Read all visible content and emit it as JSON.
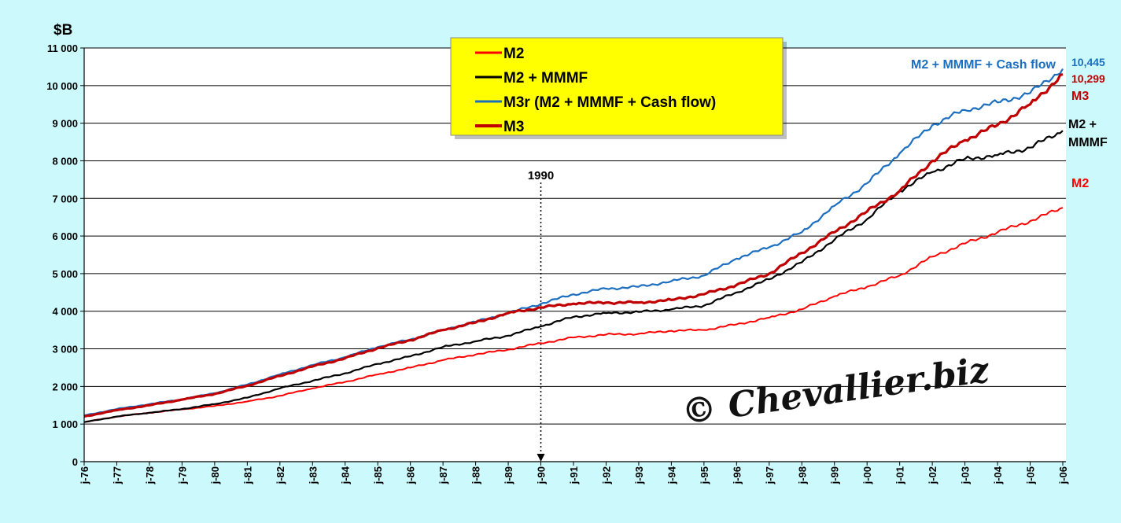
{
  "chart_data": {
    "type": "line",
    "ylabel": "$B",
    "ylim": [
      0,
      11000
    ],
    "yticks": [
      "0",
      "1 000",
      "2 000",
      "3 000",
      "4 000",
      "5 000",
      "6 000",
      "7 000",
      "8 000",
      "9 000",
      "10 000",
      "11 000"
    ],
    "x_start_year": 1976,
    "x_end_year": 2006,
    "xticks": [
      "j-76",
      "j-77",
      "j-78",
      "j-79",
      "j-80",
      "j-81",
      "j-82",
      "j-83",
      "j-84",
      "j-85",
      "j-86",
      "j-87",
      "j-88",
      "j-89",
      "j-90",
      "j-91",
      "j-92",
      "j-93",
      "j-94",
      "j-95",
      "j-96",
      "j-97",
      "j-98",
      "j-99",
      "j-00",
      "j-01",
      "j-02",
      "j-03",
      "j-04",
      "j-05",
      "j-06"
    ],
    "grid": true,
    "legend_position": "top-center",
    "annotation": {
      "label": "1990",
      "x": 1990
    },
    "watermark": "© Chevallier.biz",
    "series": [
      {
        "name": "M2",
        "color": "#ff0000",
        "width": 2,
        "end_label": "M2",
        "x": [
          1976,
          1977,
          1978,
          1979,
          1980,
          1981,
          1982,
          1983,
          1984,
          1985,
          1986,
          1987,
          1988,
          1989,
          1990,
          1991,
          1992,
          1993,
          1994,
          1995,
          1996,
          1997,
          1998,
          1999,
          2000,
          2001,
          2002,
          2003,
          2004,
          2005,
          2006
        ],
        "values": [
          1050,
          1200,
          1300,
          1390,
          1480,
          1600,
          1750,
          1950,
          2120,
          2320,
          2500,
          2700,
          2850,
          2980,
          3150,
          3300,
          3380,
          3400,
          3480,
          3500,
          3650,
          3830,
          4050,
          4400,
          4650,
          4950,
          5450,
          5800,
          6100,
          6400,
          6750
        ]
      },
      {
        "name": "M2 + MMMF",
        "color": "#000000",
        "width": 2.2,
        "end_label": "M2 + MMMF",
        "x": [
          1976,
          1977,
          1978,
          1979,
          1980,
          1981,
          1982,
          1983,
          1984,
          1985,
          1986,
          1987,
          1988,
          1989,
          1990,
          1991,
          1992,
          1993,
          1994,
          1995,
          1996,
          1997,
          1998,
          1999,
          2000,
          2001,
          2002,
          2003,
          2004,
          2005,
          2006
        ],
        "values": [
          1050,
          1200,
          1300,
          1400,
          1530,
          1700,
          1950,
          2150,
          2350,
          2600,
          2800,
          3050,
          3200,
          3350,
          3600,
          3850,
          3950,
          3980,
          4050,
          4150,
          4500,
          4850,
          5300,
          5900,
          6450,
          7200,
          7700,
          8050,
          8150,
          8350,
          8800
        ]
      },
      {
        "name": "M3r (M2 + MMMF + Cash flow)",
        "color": "#1c6fc0",
        "width": 2.2,
        "end_label": "M2 + MMMF + Cash flow",
        "end_value": "10,445",
        "x": [
          1976,
          1977,
          1978,
          1979,
          1980,
          1981,
          1982,
          1983,
          1984,
          1985,
          1986,
          1987,
          1988,
          1989,
          1990,
          1991,
          1992,
          1993,
          1994,
          1995,
          1996,
          1997,
          1998,
          1999,
          2000,
          2001,
          2002,
          2003,
          2004,
          2005,
          2006
        ],
        "values": [
          1230,
          1400,
          1530,
          1660,
          1820,
          2050,
          2320,
          2570,
          2780,
          3050,
          3250,
          3500,
          3720,
          3950,
          4200,
          4450,
          4600,
          4650,
          4800,
          4950,
          5400,
          5700,
          6100,
          6800,
          7400,
          8200,
          8950,
          9350,
          9550,
          9800,
          10445
        ]
      },
      {
        "name": "M3",
        "color": "#c00000",
        "width": 3.2,
        "end_label": "M3",
        "end_value": "10,299",
        "x": [
          1976,
          1977,
          1978,
          1979,
          1980,
          1981,
          1982,
          1983,
          1984,
          1985,
          1986,
          1987,
          1988,
          1989,
          1990,
          1991,
          1992,
          1993,
          1994,
          1995,
          1996,
          1997,
          1998,
          1999,
          2000,
          2001,
          2002,
          2003,
          2004,
          2005,
          2006
        ],
        "values": [
          1200,
          1370,
          1500,
          1650,
          1800,
          2020,
          2280,
          2530,
          2750,
          3020,
          3230,
          3500,
          3700,
          3950,
          4100,
          4200,
          4230,
          4230,
          4300,
          4450,
          4700,
          5000,
          5550,
          6100,
          6650,
          7200,
          8000,
          8550,
          8950,
          9500,
          10299
        ]
      }
    ]
  }
}
